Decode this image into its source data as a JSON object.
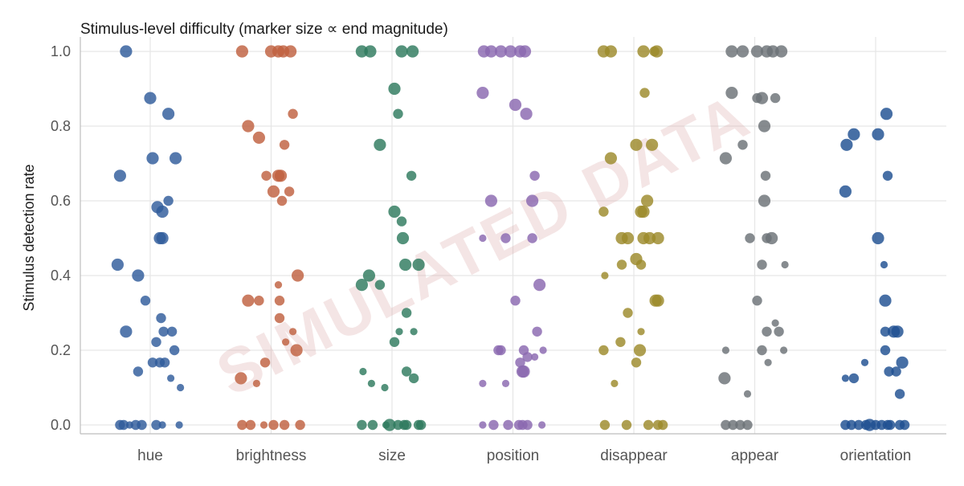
{
  "chart_data": {
    "type": "scatter",
    "title": "Stimulus-level difficulty (marker size ∝ end magnitude)",
    "ylabel": "Stimulus detection rate",
    "xlabel": "",
    "ylim": [
      0,
      1
    ],
    "yticks": [
      0.0,
      0.2,
      0.4,
      0.6,
      0.8,
      1.0
    ],
    "ytick_labels": [
      "0.0",
      "0.2",
      "0.4",
      "0.6",
      "0.8",
      "1.0"
    ],
    "grid": true,
    "watermark": "SIMULATED DATA",
    "categories": [
      "hue",
      "brightness",
      "size",
      "position",
      "disappear",
      "appear",
      "orientation"
    ],
    "series": [
      {
        "category": "hue",
        "color": "#2f5b9b",
        "points": [
          [
            -0.2,
            1.0,
            2
          ],
          [
            0.0,
            0.875,
            2
          ],
          [
            0.15,
            0.833,
            2
          ],
          [
            -0.25,
            0.667,
            2
          ],
          [
            0.02,
            0.714,
            2
          ],
          [
            0.21,
            0.714,
            2
          ],
          [
            0.15,
            0.6,
            1
          ],
          [
            0.06,
            0.583,
            2
          ],
          [
            0.1,
            0.571,
            2
          ],
          [
            0.08,
            0.5,
            2
          ],
          [
            0.1,
            0.5,
            2
          ],
          [
            -0.27,
            0.429,
            2
          ],
          [
            -0.1,
            0.4,
            2
          ],
          [
            -0.04,
            0.333,
            1
          ],
          [
            0.09,
            0.286,
            1
          ],
          [
            -0.2,
            0.25,
            2
          ],
          [
            0.11,
            0.25,
            1
          ],
          [
            0.18,
            0.25,
            1
          ],
          [
            0.05,
            0.222,
            1
          ],
          [
            0.2,
            0.2,
            1
          ],
          [
            0.02,
            0.167,
            1
          ],
          [
            0.08,
            0.167,
            1
          ],
          [
            0.12,
            0.167,
            1
          ],
          [
            -0.1,
            0.143,
            1
          ],
          [
            0.17,
            0.125,
            0
          ],
          [
            0.25,
            0.1,
            0
          ],
          [
            -0.25,
            0.0,
            1
          ],
          [
            -0.22,
            0.0,
            1
          ],
          [
            -0.17,
            0.0,
            0
          ],
          [
            -0.12,
            0.0,
            1
          ],
          [
            -0.07,
            0.0,
            1
          ],
          [
            0.05,
            0.0,
            1
          ],
          [
            0.1,
            0.0,
            0
          ],
          [
            0.24,
            0.0,
            0
          ]
        ]
      },
      {
        "category": "brightness",
        "color": "#c0603f",
        "points": [
          [
            -0.24,
            1.0,
            2
          ],
          [
            0.0,
            1.0,
            2
          ],
          [
            0.06,
            1.0,
            2
          ],
          [
            0.1,
            1.0,
            2
          ],
          [
            0.16,
            1.0,
            2
          ],
          [
            0.18,
            0.833,
            1
          ],
          [
            -0.19,
            0.8,
            2
          ],
          [
            -0.1,
            0.769,
            2
          ],
          [
            0.11,
            0.75,
            1
          ],
          [
            -0.04,
            0.667,
            1
          ],
          [
            0.06,
            0.667,
            2
          ],
          [
            0.08,
            0.667,
            2
          ],
          [
            0.02,
            0.625,
            2
          ],
          [
            0.15,
            0.625,
            1
          ],
          [
            0.09,
            0.6,
            1
          ],
          [
            0.22,
            0.4,
            2
          ],
          [
            0.06,
            0.375,
            0
          ],
          [
            -0.19,
            0.333,
            2
          ],
          [
            -0.1,
            0.333,
            1
          ],
          [
            0.07,
            0.333,
            1
          ],
          [
            0.07,
            0.286,
            1
          ],
          [
            0.18,
            0.25,
            0
          ],
          [
            0.12,
            0.222,
            0
          ],
          [
            0.21,
            0.2,
            2
          ],
          [
            -0.05,
            0.167,
            1
          ],
          [
            -0.25,
            0.125,
            2
          ],
          [
            -0.12,
            0.111,
            0
          ],
          [
            -0.24,
            0.0,
            1
          ],
          [
            -0.17,
            0.0,
            1
          ],
          [
            -0.06,
            0.0,
            0
          ],
          [
            0.02,
            0.0,
            1
          ],
          [
            0.11,
            0.0,
            1
          ],
          [
            0.24,
            0.0,
            1
          ]
        ]
      },
      {
        "category": "size",
        "color": "#2e7a5e",
        "points": [
          [
            -0.25,
            1.0,
            2
          ],
          [
            -0.18,
            1.0,
            2
          ],
          [
            0.08,
            1.0,
            2
          ],
          [
            0.17,
            1.0,
            2
          ],
          [
            0.02,
            0.9,
            2
          ],
          [
            0.05,
            0.833,
            1
          ],
          [
            -0.1,
            0.75,
            2
          ],
          [
            0.16,
            0.667,
            1
          ],
          [
            0.02,
            0.571,
            2
          ],
          [
            0.08,
            0.545,
            1
          ],
          [
            0.09,
            0.5,
            2
          ],
          [
            -0.19,
            0.4,
            2
          ],
          [
            0.11,
            0.429,
            2
          ],
          [
            0.22,
            0.429,
            2
          ],
          [
            -0.25,
            0.375,
            2
          ],
          [
            -0.1,
            0.375,
            1
          ],
          [
            0.12,
            0.3,
            1
          ],
          [
            0.06,
            0.25,
            0
          ],
          [
            0.18,
            0.25,
            0
          ],
          [
            0.02,
            0.222,
            1
          ],
          [
            -0.24,
            0.143,
            0
          ],
          [
            0.12,
            0.143,
            1
          ],
          [
            0.18,
            0.125,
            1
          ],
          [
            -0.17,
            0.111,
            0
          ],
          [
            -0.06,
            0.1,
            0
          ],
          [
            -0.25,
            0.0,
            1
          ],
          [
            -0.16,
            0.0,
            1
          ],
          [
            -0.05,
            0.0,
            0
          ],
          [
            -0.02,
            0.0,
            2
          ],
          [
            0.05,
            0.0,
            1
          ],
          [
            0.1,
            0.0,
            1
          ],
          [
            0.12,
            0.0,
            1
          ],
          [
            0.22,
            0.0,
            1
          ],
          [
            0.24,
            0.0,
            1
          ]
        ]
      },
      {
        "category": "position",
        "color": "#8a68b0",
        "points": [
          [
            -0.24,
            1.0,
            2
          ],
          [
            -0.18,
            1.0,
            2
          ],
          [
            -0.1,
            1.0,
            2
          ],
          [
            -0.02,
            1.0,
            2
          ],
          [
            0.06,
            1.0,
            2
          ],
          [
            0.1,
            1.0,
            2
          ],
          [
            -0.25,
            0.889,
            2
          ],
          [
            0.02,
            0.857,
            2
          ],
          [
            0.11,
            0.833,
            2
          ],
          [
            0.18,
            0.667,
            1
          ],
          [
            -0.18,
            0.6,
            2
          ],
          [
            0.16,
            0.6,
            2
          ],
          [
            -0.25,
            0.5,
            0
          ],
          [
            -0.06,
            0.5,
            1
          ],
          [
            0.16,
            0.5,
            1
          ],
          [
            0.22,
            0.375,
            2
          ],
          [
            0.02,
            0.333,
            1
          ],
          [
            0.2,
            0.25,
            1
          ],
          [
            -0.1,
            0.2,
            1
          ],
          [
            -0.12,
            0.2,
            1
          ],
          [
            0.09,
            0.2,
            1
          ],
          [
            0.25,
            0.2,
            0
          ],
          [
            0.12,
            0.182,
            1
          ],
          [
            0.18,
            0.182,
            0
          ],
          [
            0.06,
            0.167,
            1
          ],
          [
            0.08,
            0.143,
            2
          ],
          [
            0.09,
            0.143,
            2
          ],
          [
            -0.25,
            0.111,
            0
          ],
          [
            -0.06,
            0.111,
            0
          ],
          [
            -0.25,
            0.0,
            0
          ],
          [
            -0.16,
            0.0,
            1
          ],
          [
            -0.04,
            0.0,
            1
          ],
          [
            0.05,
            0.0,
            1
          ],
          [
            0.08,
            0.0,
            1
          ],
          [
            0.12,
            0.0,
            1
          ],
          [
            0.24,
            0.0,
            0
          ]
        ]
      },
      {
        "category": "disappear",
        "color": "#9c8a2b",
        "points": [
          [
            -0.25,
            1.0,
            2
          ],
          [
            -0.19,
            1.0,
            2
          ],
          [
            0.08,
            1.0,
            2
          ],
          [
            0.17,
            1.0,
            1
          ],
          [
            0.19,
            1.0,
            2
          ],
          [
            0.09,
            0.889,
            1
          ],
          [
            -0.19,
            0.714,
            2
          ],
          [
            0.02,
            0.75,
            2
          ],
          [
            0.15,
            0.75,
            2
          ],
          [
            0.11,
            0.6,
            2
          ],
          [
            -0.25,
            0.571,
            1
          ],
          [
            0.06,
            0.571,
            2
          ],
          [
            0.08,
            0.571,
            2
          ],
          [
            -0.1,
            0.5,
            2
          ],
          [
            -0.05,
            0.5,
            2
          ],
          [
            0.08,
            0.5,
            2
          ],
          [
            0.13,
            0.5,
            2
          ],
          [
            0.2,
            0.5,
            2
          ],
          [
            0.02,
            0.444,
            2
          ],
          [
            -0.1,
            0.429,
            1
          ],
          [
            0.06,
            0.429,
            1
          ],
          [
            -0.24,
            0.4,
            0
          ],
          [
            0.18,
            0.333,
            2
          ],
          [
            0.2,
            0.333,
            2
          ],
          [
            -0.05,
            0.3,
            1
          ],
          [
            0.06,
            0.25,
            0
          ],
          [
            -0.11,
            0.222,
            1
          ],
          [
            -0.25,
            0.2,
            1
          ],
          [
            0.05,
            0.2,
            2
          ],
          [
            0.02,
            0.167,
            1
          ],
          [
            -0.16,
            0.111,
            0
          ],
          [
            -0.24,
            0.0,
            1
          ],
          [
            -0.06,
            0.0,
            1
          ],
          [
            0.12,
            0.0,
            1
          ],
          [
            0.2,
            0.0,
            1
          ],
          [
            0.24,
            0.0,
            1
          ]
        ]
      },
      {
        "category": "appear",
        "color": "#6b7176",
        "points": [
          [
            -0.19,
            1.0,
            2
          ],
          [
            -0.1,
            1.0,
            2
          ],
          [
            0.02,
            1.0,
            2
          ],
          [
            0.1,
            1.0,
            2
          ],
          [
            0.15,
            1.0,
            2
          ],
          [
            0.22,
            1.0,
            2
          ],
          [
            -0.19,
            0.889,
            2
          ],
          [
            0.02,
            0.875,
            1
          ],
          [
            0.06,
            0.875,
            2
          ],
          [
            0.17,
            0.875,
            1
          ],
          [
            0.08,
            0.8,
            2
          ],
          [
            -0.24,
            0.714,
            2
          ],
          [
            -0.1,
            0.75,
            1
          ],
          [
            0.09,
            0.667,
            1
          ],
          [
            0.08,
            0.6,
            2
          ],
          [
            -0.04,
            0.5,
            1
          ],
          [
            0.1,
            0.5,
            1
          ],
          [
            0.14,
            0.5,
            2
          ],
          [
            0.06,
            0.429,
            1
          ],
          [
            0.25,
            0.429,
            0
          ],
          [
            0.02,
            0.333,
            1
          ],
          [
            0.17,
            0.273,
            0
          ],
          [
            0.1,
            0.25,
            1
          ],
          [
            0.2,
            0.25,
            1
          ],
          [
            -0.24,
            0.2,
            0
          ],
          [
            0.06,
            0.2,
            1
          ],
          [
            0.24,
            0.2,
            0
          ],
          [
            0.11,
            0.167,
            0
          ],
          [
            -0.25,
            0.125,
            2
          ],
          [
            -0.06,
            0.083,
            0
          ],
          [
            -0.24,
            0.0,
            1
          ],
          [
            -0.18,
            0.0,
            1
          ],
          [
            -0.12,
            0.0,
            1
          ],
          [
            -0.06,
            0.0,
            1
          ]
        ]
      },
      {
        "category": "orientation",
        "color": "#1f4f91",
        "points": [
          [
            0.09,
            0.833,
            2
          ],
          [
            -0.18,
            0.778,
            2
          ],
          [
            0.02,
            0.778,
            2
          ],
          [
            -0.24,
            0.75,
            2
          ],
          [
            0.1,
            0.667,
            1
          ],
          [
            -0.25,
            0.625,
            2
          ],
          [
            0.02,
            0.5,
            2
          ],
          [
            0.07,
            0.429,
            0
          ],
          [
            0.08,
            0.333,
            2
          ],
          [
            0.08,
            0.25,
            1
          ],
          [
            0.15,
            0.25,
            2
          ],
          [
            0.18,
            0.25,
            2
          ],
          [
            0.08,
            0.2,
            1
          ],
          [
            -0.09,
            0.167,
            0
          ],
          [
            0.22,
            0.167,
            2
          ],
          [
            0.11,
            0.143,
            1
          ],
          [
            0.17,
            0.143,
            1
          ],
          [
            -0.18,
            0.125,
            1
          ],
          [
            -0.25,
            0.125,
            0
          ],
          [
            0.2,
            0.083,
            1
          ],
          [
            -0.25,
            0.0,
            1
          ],
          [
            -0.2,
            0.0,
            1
          ],
          [
            -0.14,
            0.0,
            1
          ],
          [
            -0.08,
            0.0,
            1
          ],
          [
            -0.05,
            0.0,
            2
          ],
          [
            0.0,
            0.0,
            1
          ],
          [
            0.05,
            0.0,
            1
          ],
          [
            0.1,
            0.0,
            1
          ],
          [
            0.12,
            0.0,
            1
          ],
          [
            0.2,
            0.0,
            1
          ],
          [
            0.24,
            0.0,
            1
          ]
        ]
      }
    ]
  }
}
